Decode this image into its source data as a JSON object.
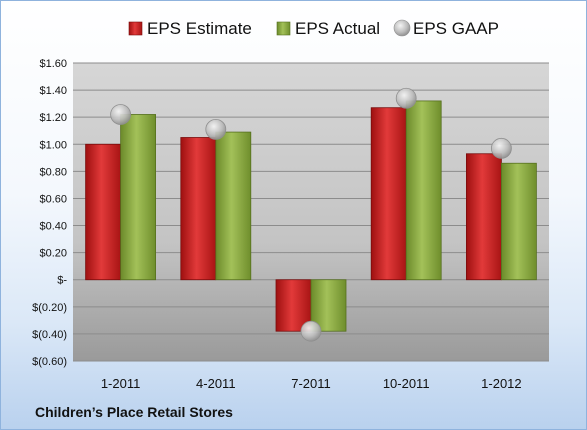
{
  "chart_data": {
    "type": "bar",
    "categories": [
      "1-2011",
      "4-2011",
      "7-2011",
      "10-2011",
      "1-2012"
    ],
    "series": [
      {
        "name": "EPS Estimate",
        "type": "bar",
        "color": "#cc1f1f",
        "values": [
          1.0,
          1.05,
          -0.38,
          1.27,
          0.93
        ]
      },
      {
        "name": "EPS Actual",
        "type": "bar",
        "color": "#8aac3e",
        "values": [
          1.22,
          1.09,
          -0.38,
          1.32,
          0.86
        ]
      },
      {
        "name": "EPS GAAP",
        "type": "scatter",
        "color": "#b8b8b8",
        "values": [
          1.22,
          1.11,
          -0.38,
          1.34,
          0.97
        ]
      }
    ],
    "y_tick_labels": [
      "$1.60",
      "$1.40",
      "$1.20",
      "$1.00",
      "$0.80",
      "$0.60",
      "$0.40",
      "$0.20",
      "$-",
      "$(0.20)",
      "$(0.40)",
      "$(0.60)"
    ],
    "y_ticks": [
      1.6,
      1.4,
      1.2,
      1.0,
      0.8,
      0.6,
      0.4,
      0.2,
      0.0,
      -0.2,
      -0.4,
      -0.6
    ],
    "ylim": [
      -0.6,
      1.6
    ],
    "grid": true,
    "legend_position": "top"
  },
  "footer": {
    "company_name": "Children’s Place Retail Stores"
  }
}
